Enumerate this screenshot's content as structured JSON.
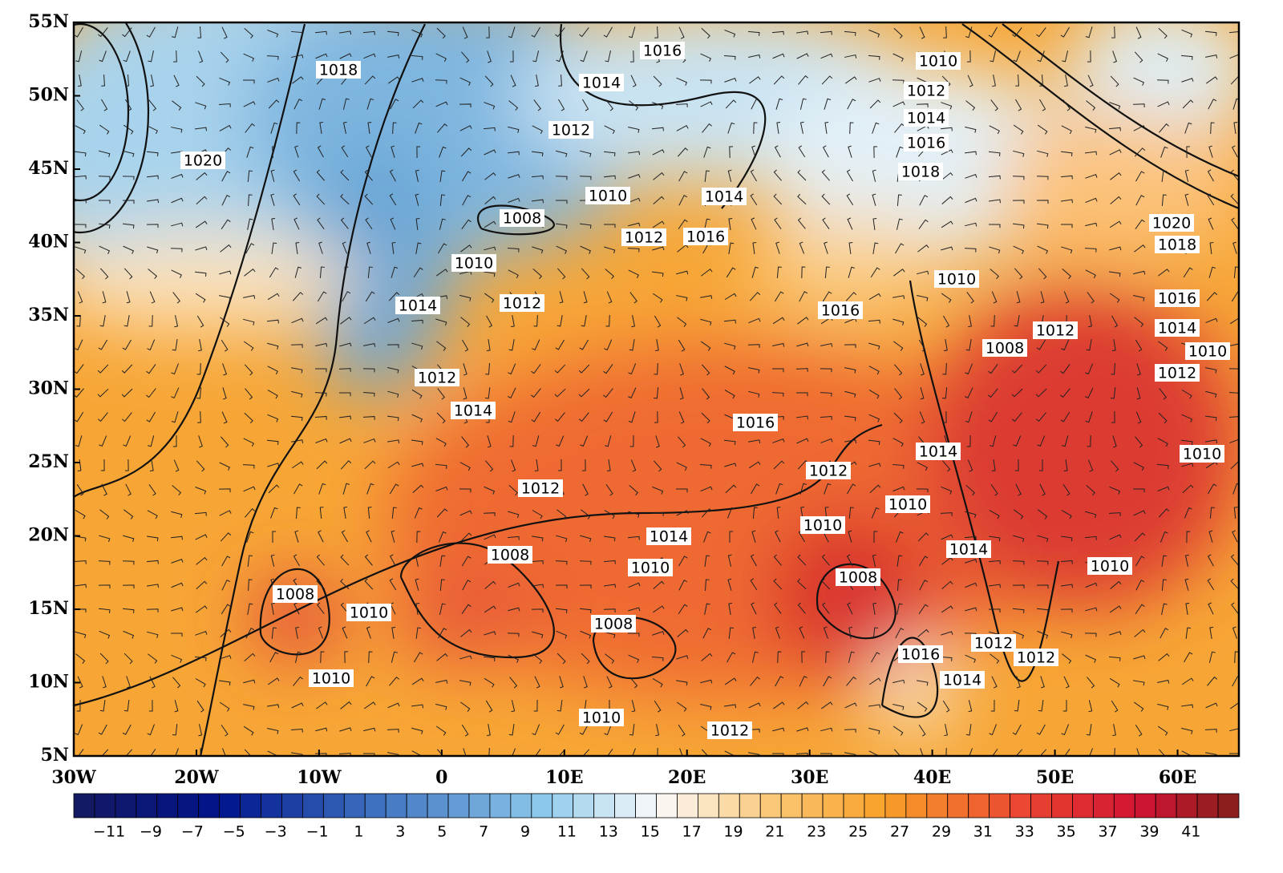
{
  "map": {
    "lat_labels": [
      "55N",
      "50N",
      "45N",
      "40N",
      "35N",
      "30N",
      "25N",
      "20N",
      "15N",
      "10N",
      "5N"
    ],
    "lon_labels": [
      "30W",
      "20W",
      "10W",
      "0",
      "10E",
      "20E",
      "30E",
      "40E",
      "50E",
      "60E"
    ],
    "contour_labels": [
      "1018",
      "1016",
      "1010",
      "1014",
      "1012",
      "1014",
      "1012",
      "1016",
      "1020",
      "1018",
      "1010",
      "1014",
      "1008",
      "1020",
      "1012",
      "1016",
      "1018",
      "1010",
      "1010",
      "1016",
      "1014",
      "1012",
      "1016",
      "1012",
      "1014",
      "1008",
      "1010",
      "1012",
      "1012",
      "1014",
      "1016",
      "1014",
      "1010",
      "1012",
      "1012",
      "1010",
      "1010",
      "1014",
      "1014",
      "1008",
      "1010",
      "1010",
      "1008",
      "1008",
      "1010",
      "1008",
      "1012",
      "1016",
      "1012",
      "1010",
      "1014",
      "1010",
      "1012"
    ],
    "colorbar_labels": [
      "−11",
      "−9",
      "−7",
      "−5",
      "−3",
      "−1",
      "1",
      "3",
      "5",
      "7",
      "9",
      "11",
      "13",
      "15",
      "17",
      "19",
      "21",
      "23",
      "25",
      "27",
      "29",
      "31",
      "33",
      "35",
      "37",
      "39",
      "41"
    ]
  }
}
